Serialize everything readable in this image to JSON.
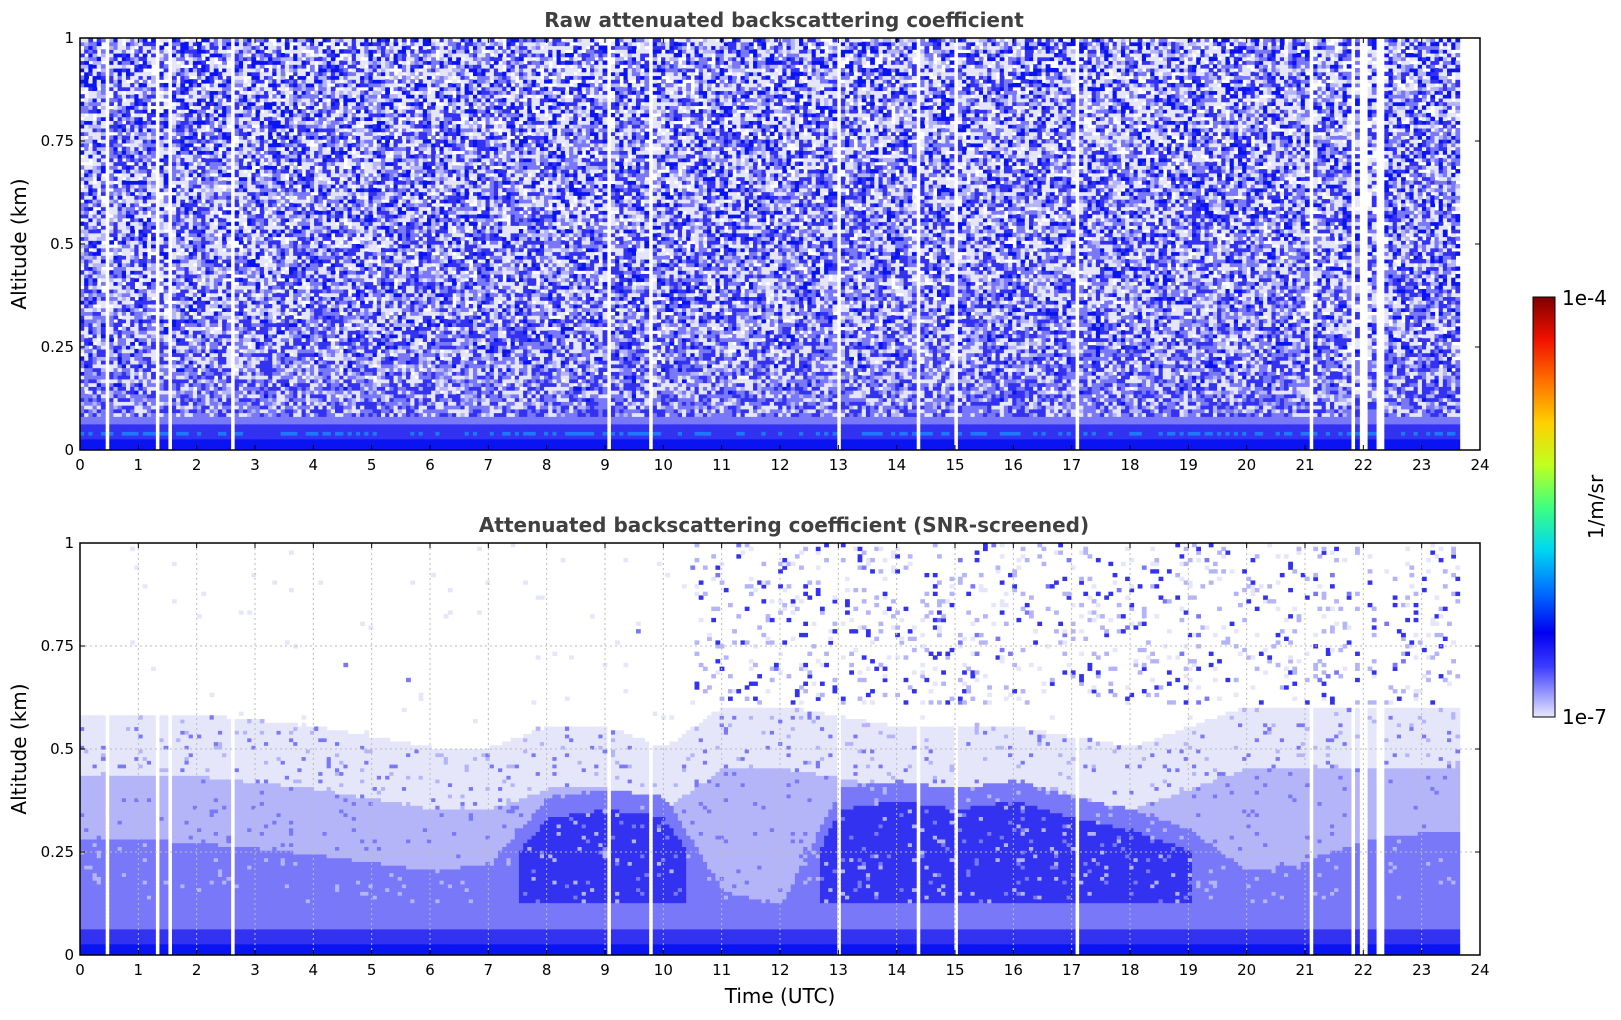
{
  "chart_data": [
    {
      "type": "heatmap",
      "title": "Raw attenuated backscattering coefficient",
      "xlabel": "",
      "ylabel": "Altitude (km)",
      "xlim": [
        0,
        24
      ],
      "ylim": [
        0,
        1
      ],
      "x_ticks": [
        "0",
        "1",
        "2",
        "3",
        "4",
        "5",
        "6",
        "7",
        "8",
        "9",
        "10",
        "11",
        "12",
        "13",
        "14",
        "15",
        "16",
        "17",
        "18",
        "19",
        "20",
        "21",
        "22",
        "23",
        "24"
      ],
      "y_ticks": [
        "0",
        "0.25",
        "0.5",
        "0.75",
        "1"
      ],
      "grid": false,
      "data_end_time": 23.65,
      "data_gaps": [
        [
          0.45,
          0.48
        ],
        [
          1.3,
          1.35
        ],
        [
          1.5,
          1.55
        ],
        [
          2.6,
          2.63
        ],
        [
          9.05,
          9.1
        ],
        [
          9.75,
          9.8
        ],
        [
          10.1,
          10.14
        ],
        [
          10.95,
          11.0
        ],
        [
          12.95,
          13.05
        ],
        [
          14.35,
          14.38
        ],
        [
          15.0,
          15.05
        ],
        [
          17.05,
          17.1
        ],
        [
          19.55,
          19.6
        ],
        [
          20.9,
          20.95
        ],
        [
          21.1,
          21.15
        ],
        [
          21.8,
          21.83
        ],
        [
          21.95,
          22.05
        ],
        [
          22.2,
          22.35
        ]
      ],
      "description_layers": [
        {
          "altitude_km": [
            0.0,
            0.08
          ],
          "level": "high",
          "value_approx": "3e-6"
        },
        {
          "altitude_km": [
            0.08,
            0.3
          ],
          "level": "medium",
          "value_approx": "1e-6"
        },
        {
          "altitude_km": [
            0.3,
            1.0
          ],
          "level": "noisy",
          "value_approx": "3e-7"
        }
      ]
    },
    {
      "type": "heatmap",
      "title": "Attenuated backscattering coefficient (SNR-screened)",
      "xlabel": "Time (UTC)",
      "ylabel": "Altitude (km)",
      "xlim": [
        0,
        24
      ],
      "ylim": [
        0,
        1
      ],
      "x_ticks": [
        "0",
        "1",
        "2",
        "3",
        "4",
        "5",
        "6",
        "7",
        "8",
        "9",
        "10",
        "11",
        "12",
        "13",
        "14",
        "15",
        "16",
        "17",
        "18",
        "19",
        "20",
        "21",
        "22",
        "23",
        "24"
      ],
      "y_ticks": [
        "0",
        "0.25",
        "0.5",
        "0.75",
        "1"
      ],
      "grid": true,
      "data_end_time": 23.65,
      "boundary_layer_top_km": [
        [
          0,
          0.58
        ],
        [
          2,
          0.58
        ],
        [
          4,
          0.55
        ],
        [
          6,
          0.5
        ],
        [
          7,
          0.5
        ],
        [
          8,
          0.55
        ],
        [
          9,
          0.55
        ],
        [
          10,
          0.5
        ],
        [
          11,
          0.6
        ],
        [
          12,
          0.6
        ],
        [
          14,
          0.55
        ],
        [
          16,
          0.55
        ],
        [
          18,
          0.5
        ],
        [
          20,
          0.6
        ],
        [
          22,
          0.6
        ],
        [
          23.65,
          0.6
        ]
      ],
      "mixed_layer_top_km": [
        [
          0,
          0.28
        ],
        [
          2,
          0.27
        ],
        [
          4,
          0.24
        ],
        [
          6,
          0.2
        ],
        [
          7,
          0.22
        ],
        [
          8,
          0.38
        ],
        [
          9,
          0.4
        ],
        [
          10,
          0.38
        ],
        [
          11,
          0.15
        ],
        [
          12,
          0.12
        ],
        [
          13,
          0.4
        ],
        [
          14,
          0.42
        ],
        [
          15,
          0.4
        ],
        [
          16,
          0.42
        ],
        [
          17,
          0.38
        ],
        [
          18,
          0.35
        ],
        [
          19,
          0.3
        ],
        [
          20,
          0.2
        ],
        [
          21,
          0.22
        ],
        [
          22,
          0.28
        ],
        [
          23.65,
          0.3
        ]
      ]
    }
  ],
  "colorbar": {
    "label": "1/m/sr",
    "min_label": "1e-7",
    "max_label": "1e-4",
    "scale": "log",
    "colormap": "jet-like (white/lavender → blue → cyan → green → yellow → red)"
  },
  "colors": {
    "lavender": "#e6e6fa",
    "light_blue": "#b4b4f8",
    "mid_blue": "#7878f8",
    "blue": "#3232f0",
    "strong_blue": "#0a14f0",
    "cyan_blue": "#1e78ff",
    "title_gray": "#404040"
  }
}
